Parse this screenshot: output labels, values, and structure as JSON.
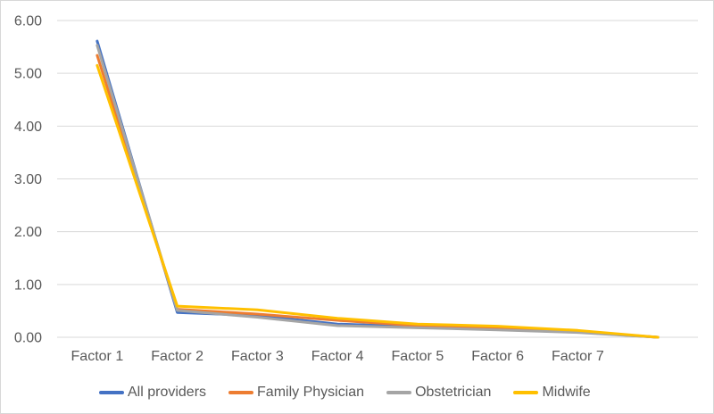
{
  "chart_data": {
    "type": "line",
    "title": "",
    "xlabel": "",
    "ylabel": "",
    "categories": [
      "Factor 1",
      "Factor 2",
      "Factor 3",
      "Factor 4",
      "Factor 5",
      "Factor 6",
      "Factor 7",
      ""
    ],
    "series": [
      {
        "name": "All providers",
        "color": "#4472C4",
        "values": [
          5.61,
          0.47,
          0.41,
          0.25,
          0.2,
          0.16,
          0.1,
          0.0
        ]
      },
      {
        "name": "Family Physician",
        "color": "#ED7D31",
        "values": [
          5.34,
          0.53,
          0.44,
          0.32,
          0.22,
          0.17,
          0.11,
          0.0
        ]
      },
      {
        "name": "Obstetrician",
        "color": "#A5A5A5",
        "values": [
          5.53,
          0.51,
          0.38,
          0.22,
          0.18,
          0.14,
          0.09,
          0.0
        ]
      },
      {
        "name": "Midwife",
        "color": "#FFC000",
        "values": [
          5.15,
          0.59,
          0.52,
          0.36,
          0.25,
          0.21,
          0.13,
          0.0
        ]
      }
    ],
    "y_ticks": [
      "6.00",
      "5.00",
      "4.00",
      "3.00",
      "2.00",
      "1.00",
      "0.00"
    ],
    "ylim": [
      0,
      6
    ],
    "grid": true,
    "legend_position": "bottom",
    "colors": {
      "gridline": "#D9D9D9",
      "axis_label": "#595959",
      "background": "#FFFFFF",
      "border": "#D8D8D8"
    }
  }
}
